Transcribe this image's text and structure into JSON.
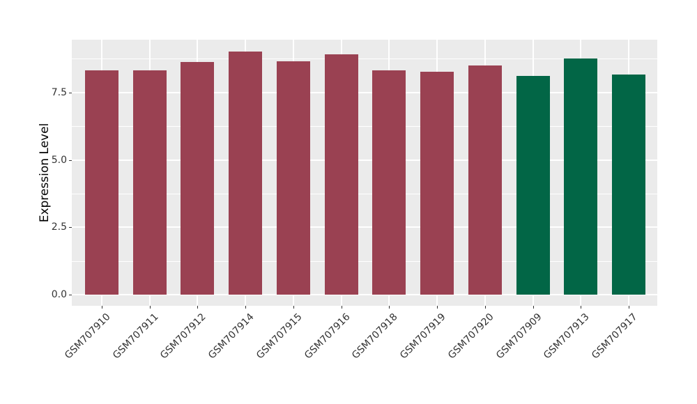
{
  "figure": {
    "background": "#ffffff",
    "panel_background": "#ebebeb",
    "grid_color": "#ffffff",
    "axis_text_color": "#333333",
    "axis_title_color": "#000000"
  },
  "chart_data": {
    "type": "bar",
    "title": "",
    "xlabel": "",
    "ylabel": "Expression Level",
    "ylim": [
      0,
      9.46
    ],
    "yticks": [
      0.0,
      2.5,
      5.0,
      7.5
    ],
    "ytick_labels": [
      "0.0",
      "2.5",
      "5.0",
      "7.5"
    ],
    "minor_yticks": [
      1.25,
      3.75,
      6.25,
      8.75
    ],
    "grid": true,
    "legend_position": "none",
    "categories": [
      "GSM707910",
      "GSM707911",
      "GSM707912",
      "GSM707914",
      "GSM707915",
      "GSM707916",
      "GSM707918",
      "GSM707919",
      "GSM707920",
      "GSM707909",
      "GSM707913",
      "GSM707917"
    ],
    "series": [
      {
        "name": "expression",
        "values": [
          8.33,
          8.33,
          8.64,
          9.03,
          8.66,
          8.92,
          8.33,
          8.28,
          8.51,
          8.12,
          8.77,
          8.17
        ]
      }
    ],
    "bar_groups": [
      "groupA",
      "groupA",
      "groupA",
      "groupA",
      "groupA",
      "groupA",
      "groupA",
      "groupA",
      "groupA",
      "groupB",
      "groupB",
      "groupB"
    ],
    "colors": {
      "groupA": "#9a4152",
      "groupB": "#026646"
    }
  }
}
